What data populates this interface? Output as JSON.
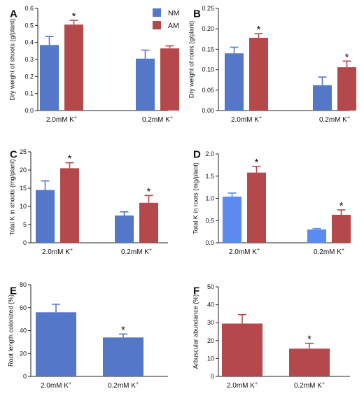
{
  "legend": [
    {
      "name": "NM",
      "color": "#5577C8"
    },
    {
      "name": "AM",
      "color": "#B5484A"
    }
  ],
  "chart_data": [
    {
      "panel": "A",
      "type": "bar",
      "ylabel": "Dry weight of shoots (g/plant)",
      "ylim": [
        0,
        0.6
      ],
      "yticks": [
        "0.0",
        "0.1",
        "0.2",
        "0.3",
        "0.4",
        "0.5",
        "0.6"
      ],
      "categories": [
        "2.0mM K",
        "0.2mM K"
      ],
      "superscript": "+",
      "series": [
        {
          "name": "NM",
          "color": "#5577C8",
          "values": [
            0.385,
            0.305
          ],
          "errors": [
            0.05,
            0.05
          ]
        },
        {
          "name": "AM",
          "color": "#B5484A",
          "values": [
            0.505,
            0.365
          ],
          "errors": [
            0.025,
            0.015
          ]
        }
      ],
      "significance": [
        {
          "series": 1,
          "category": 0,
          "mark": "*"
        }
      ]
    },
    {
      "panel": "B",
      "type": "bar",
      "ylabel": "Dry weight of roots (g/plant)",
      "ylim": [
        0,
        0.25
      ],
      "yticks": [
        "0.00",
        "0.05",
        "0.10",
        "0.15",
        "0.20",
        "0.25"
      ],
      "categories": [
        "2.0mM K",
        "0.2mM K"
      ],
      "superscript": "+",
      "series": [
        {
          "name": "NM",
          "color": "#5577C8",
          "values": [
            0.14,
            0.062
          ],
          "errors": [
            0.015,
            0.02
          ]
        },
        {
          "name": "AM",
          "color": "#B5484A",
          "values": [
            0.178,
            0.106
          ],
          "errors": [
            0.01,
            0.015
          ]
        }
      ],
      "significance": [
        {
          "series": 1,
          "category": 0,
          "mark": "*"
        },
        {
          "series": 1,
          "category": 1,
          "mark": "*"
        }
      ]
    },
    {
      "panel": "C",
      "type": "bar",
      "ylabel": "Total K in shoots (mg/plant)",
      "ylim": [
        0,
        25
      ],
      "yticks": [
        "0",
        "5",
        "10",
        "15",
        "20",
        "25"
      ],
      "categories": [
        "2.0mM K",
        "0.2mM K"
      ],
      "superscript": "+",
      "series": [
        {
          "name": "NM",
          "color": "#5577C8",
          "values": [
            14.5,
            7.5
          ],
          "errors": [
            2.5,
            1.0
          ]
        },
        {
          "name": "AM",
          "color": "#B5484A",
          "values": [
            20.5,
            11.0
          ],
          "errors": [
            1.5,
            2.0
          ]
        }
      ],
      "significance": [
        {
          "series": 1,
          "category": 0,
          "mark": "*"
        },
        {
          "series": 1,
          "category": 1,
          "mark": "*"
        }
      ]
    },
    {
      "panel": "D",
      "type": "bar",
      "ylabel": "Total K in roots (mg/plant)",
      "ylim": [
        0,
        2.0
      ],
      "yticks": [
        "0.0",
        "0.5",
        "1.0",
        "1.5",
        "2.0"
      ],
      "categories": [
        "2.0mM K",
        "0.2mM K"
      ],
      "superscript": "+",
      "series": [
        {
          "name": "NM",
          "color": "#5B8AF0",
          "values": [
            1.04,
            0.3
          ],
          "errors": [
            0.08,
            0.02
          ]
        },
        {
          "name": "AM",
          "color": "#B5484A",
          "values": [
            1.58,
            0.63
          ],
          "errors": [
            0.14,
            0.11
          ]
        }
      ],
      "significance": [
        {
          "series": 1,
          "category": 0,
          "mark": "*"
        },
        {
          "series": 1,
          "category": 1,
          "mark": "*"
        }
      ]
    },
    {
      "panel": "E",
      "type": "bar",
      "ylabel": "Root length colonized (%)",
      "ylim": [
        0,
        80
      ],
      "yticks": [
        "0",
        "20",
        "40",
        "60",
        "80"
      ],
      "categories": [
        "2.0mM K",
        "0.2mM K"
      ],
      "superscript": "+",
      "series": [
        {
          "name": "",
          "color": "#5577C8",
          "values": [
            56,
            34
          ],
          "errors": [
            7,
            3
          ]
        }
      ],
      "significance": [
        {
          "series": 0,
          "category": 1,
          "mark": "*"
        }
      ]
    },
    {
      "panel": "F",
      "type": "bar",
      "ylabel": "Arbuscular abundance (%)",
      "ylim": [
        0,
        50
      ],
      "yticks": [
        "0",
        "10",
        "20",
        "30",
        "40",
        "50"
      ],
      "categories": [
        "2.0mM K",
        "0.2mM K"
      ],
      "superscript": "+",
      "series": [
        {
          "name": "",
          "color": "#B5484A",
          "values": [
            29.5,
            15.5
          ],
          "errors": [
            5,
            3
          ]
        }
      ],
      "significance": [
        {
          "series": 0,
          "category": 1,
          "mark": "*"
        }
      ]
    }
  ]
}
